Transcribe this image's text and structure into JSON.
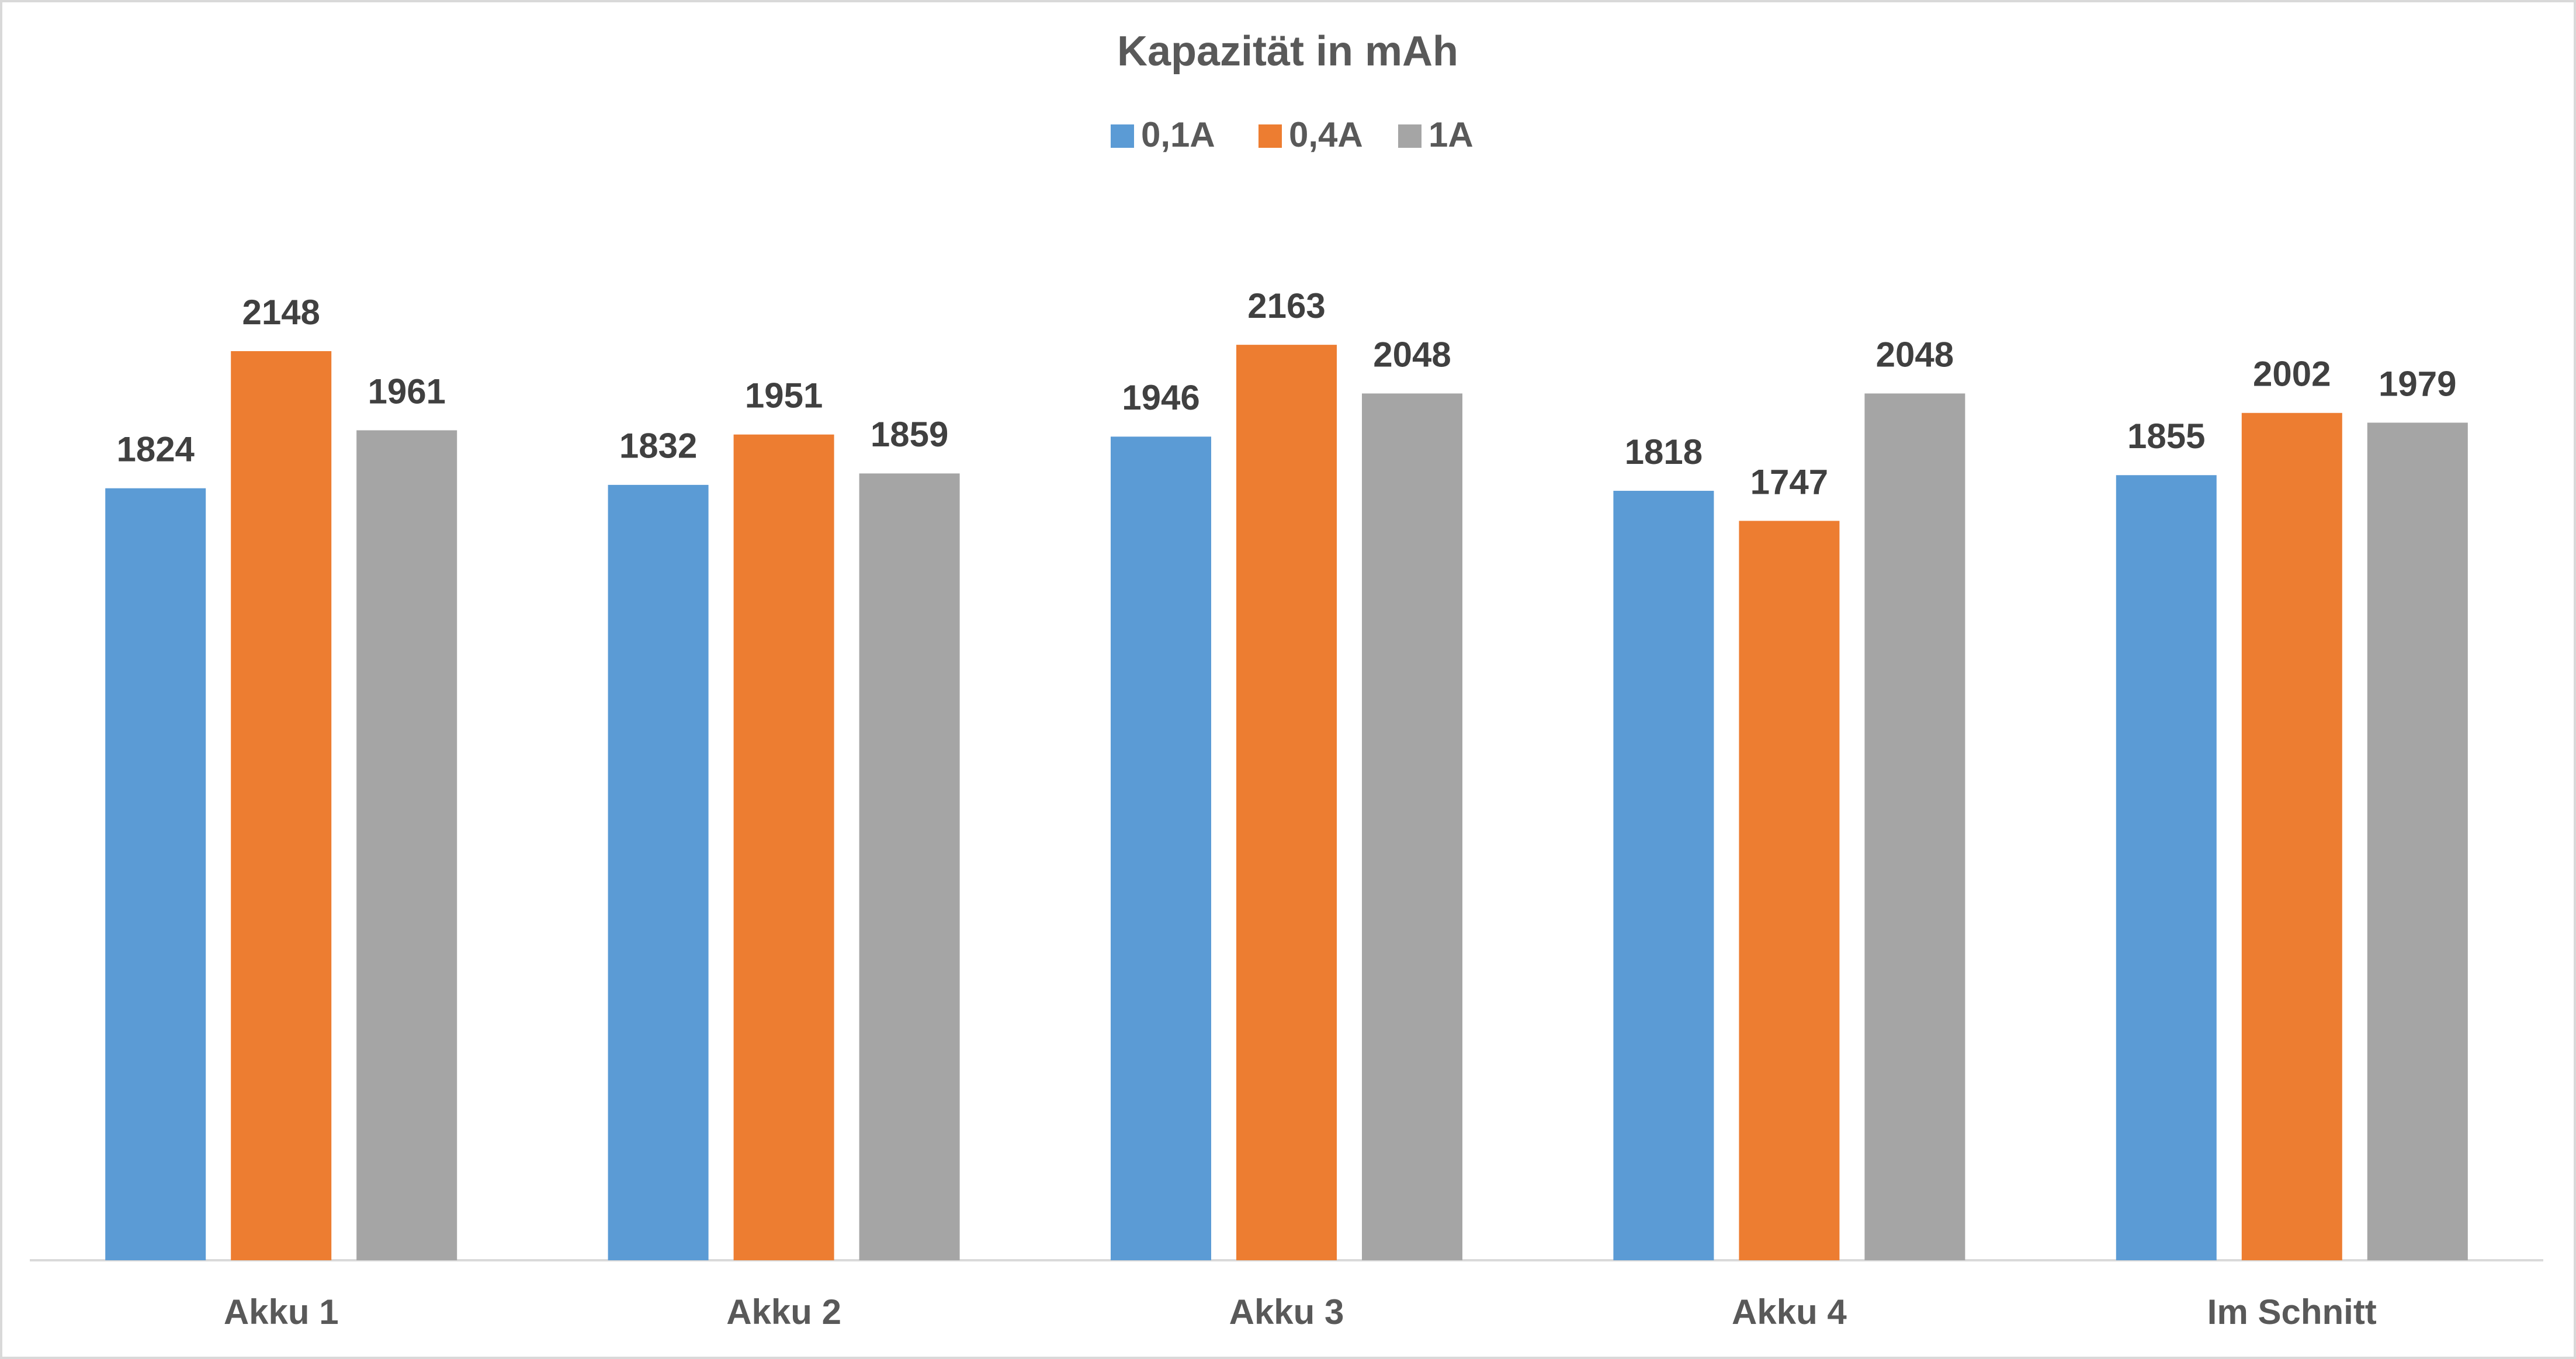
{
  "chart_data": {
    "type": "bar",
    "title": "Kapazität in mAh",
    "categories": [
      "Akku 1",
      "Akku 2",
      "Akku 3",
      "Akku 4",
      "Im Schnitt"
    ],
    "series": [
      {
        "name": "0,1A",
        "color": "#5b9bd5",
        "values": [
          1824,
          1832,
          1946,
          1818,
          1855
        ]
      },
      {
        "name": "0,4A",
        "color": "#ed7d31",
        "values": [
          2148,
          1951,
          2163,
          1747,
          2002
        ]
      },
      {
        "name": "1A",
        "color": "#a5a5a5",
        "values": [
          1961,
          1859,
          2048,
          2048,
          1979
        ]
      }
    ],
    "ylim": [
      0,
      2500
    ],
    "legend": "top",
    "grid": false
  }
}
